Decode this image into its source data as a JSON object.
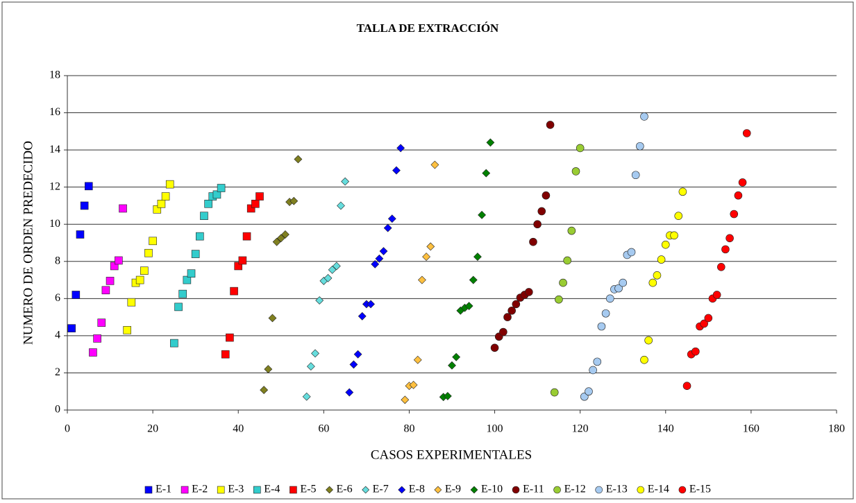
{
  "chart_data": {
    "type": "scatter",
    "title": "TALLA DE EXTRACCIÓN",
    "x_label": "CASOS EXPERIMENTALES",
    "y_label": "NUMERO DE ORDEN PREDECIDO",
    "xlim": [
      0,
      180
    ],
    "xticks": [
      0,
      20,
      40,
      60,
      80,
      100,
      120,
      140,
      160,
      180
    ],
    "ylim": [
      0,
      18
    ],
    "yticks": [
      0,
      2,
      4,
      6,
      8,
      10,
      12,
      14,
      16,
      18
    ],
    "grid": true,
    "legend": "bottom",
    "series": [
      {
        "name": "E-1",
        "color": "#0000ff",
        "marker": "square",
        "x": [
          1,
          2,
          3,
          4,
          5
        ],
        "values": [
          4.4,
          6.2,
          9.45,
          11,
          12.05
        ]
      },
      {
        "name": "E-2",
        "color": "#ff00ff",
        "marker": "square",
        "x": [
          6,
          7,
          8,
          9,
          10,
          11,
          12,
          13
        ],
        "values": [
          3.1,
          3.85,
          4.7,
          6.45,
          6.95,
          7.75,
          8.05,
          10.85
        ]
      },
      {
        "name": "E-3",
        "color": "#ffff00",
        "marker": "square",
        "x": [
          14,
          15,
          16,
          17,
          18,
          19,
          20,
          21,
          22,
          23,
          24
        ],
        "values": [
          4.3,
          5.8,
          6.85,
          7.0,
          7.5,
          8.45,
          9.1,
          10.8,
          11.1,
          11.5,
          12.15
        ]
      },
      {
        "name": "E-4",
        "color": "#33cccc",
        "marker": "square",
        "x": [
          25,
          26,
          27,
          28,
          29,
          30,
          31,
          32,
          33,
          34,
          35,
          36
        ],
        "values": [
          3.6,
          5.55,
          6.25,
          7.0,
          7.35,
          8.4,
          9.35,
          10.45,
          11.1,
          11.5,
          11.6,
          11.95
        ]
      },
      {
        "name": "E-5",
        "color": "#ff0000",
        "marker": "square",
        "x": [
          37,
          38,
          39,
          40,
          41,
          42,
          43,
          44,
          45
        ],
        "values": [
          3.0,
          3.9,
          6.4,
          7.75,
          8.05,
          9.35,
          10.85,
          11.1,
          11.5
        ]
      },
      {
        "name": "E-6",
        "color": "#808020",
        "marker": "diamond",
        "x": [
          46,
          47,
          48,
          49,
          50,
          51,
          52,
          53,
          54
        ],
        "values": [
          1.08,
          2.2,
          4.95,
          9.05,
          9.25,
          9.45,
          11.2,
          11.25,
          13.5
        ]
      },
      {
        "name": "E-7",
        "color": "#66dddd",
        "marker": "diamond",
        "x": [
          56,
          57,
          58,
          59,
          60,
          61,
          62,
          63,
          64,
          65
        ],
        "values": [
          0.72,
          2.35,
          3.05,
          5.9,
          6.95,
          7.1,
          7.55,
          7.75,
          11.0,
          12.3
        ]
      },
      {
        "name": "E-8",
        "color": "#0000ff",
        "marker": "diamond",
        "x": [
          66,
          67,
          68,
          69,
          70,
          71,
          72,
          73,
          74,
          75,
          76,
          77,
          78
        ],
        "values": [
          0.95,
          2.45,
          3.0,
          5.05,
          5.7,
          5.7,
          7.85,
          8.15,
          8.55,
          9.8,
          10.3,
          12.9,
          14.1
        ]
      },
      {
        "name": "E-9",
        "color": "#ffc040",
        "marker": "diamond",
        "x": [
          79,
          80,
          81,
          82,
          83,
          84,
          85,
          86
        ],
        "values": [
          0.55,
          1.3,
          1.35,
          2.7,
          7.0,
          8.25,
          8.8,
          13.2
        ]
      },
      {
        "name": "E-10",
        "color": "#008000",
        "marker": "diamond",
        "x": [
          88,
          89,
          90,
          91,
          92,
          93,
          94,
          95,
          96,
          97,
          98,
          99
        ],
        "values": [
          0.7,
          0.75,
          2.4,
          2.85,
          5.35,
          5.5,
          5.6,
          7.0,
          8.25,
          10.5,
          12.75,
          14.4
        ]
      },
      {
        "name": "E-11",
        "color": "#800000",
        "marker": "circle",
        "x": [
          100,
          101,
          102,
          103,
          104,
          105,
          106,
          107,
          108,
          109,
          110,
          111,
          112,
          113
        ],
        "values": [
          3.35,
          3.95,
          4.2,
          5.0,
          5.35,
          5.7,
          6.05,
          6.2,
          6.35,
          9.05,
          10.0,
          10.7,
          11.55,
          15.35
        ]
      },
      {
        "name": "E-12",
        "color": "#99cc33",
        "marker": "circle",
        "x": [
          114,
          115,
          116,
          117,
          118,
          119,
          120
        ],
        "values": [
          0.95,
          5.95,
          6.85,
          8.05,
          9.65,
          12.85,
          14.1
        ]
      },
      {
        "name": "E-13",
        "color": "#a6caf0",
        "marker": "circle",
        "x": [
          121,
          122,
          123,
          124,
          125,
          126,
          127,
          128,
          129,
          130,
          131,
          132,
          133,
          134,
          135
        ],
        "values": [
          0.72,
          1.0,
          2.15,
          2.6,
          4.5,
          5.2,
          6.0,
          6.5,
          6.55,
          6.85,
          8.35,
          8.5,
          12.65,
          14.2,
          15.8
        ]
      },
      {
        "name": "E-14",
        "color": "#ffff00",
        "marker": "circle",
        "x": [
          135,
          136,
          137,
          138,
          139,
          140,
          141,
          142,
          143,
          144
        ],
        "values": [
          2.7,
          3.75,
          6.85,
          7.25,
          8.1,
          8.9,
          9.4,
          9.4,
          10.45,
          11.75
        ]
      },
      {
        "name": "E-15",
        "color": "#ff0000",
        "marker": "circle",
        "x": [
          145,
          146,
          147,
          148,
          149,
          150,
          151,
          152,
          153,
          154,
          155,
          156,
          157,
          158,
          159
        ],
        "values": [
          1.3,
          3.0,
          3.15,
          4.5,
          4.65,
          4.95,
          6.0,
          6.2,
          7.7,
          8.65,
          9.25,
          10.55,
          11.55,
          12.25,
          14.9
        ]
      }
    ]
  }
}
